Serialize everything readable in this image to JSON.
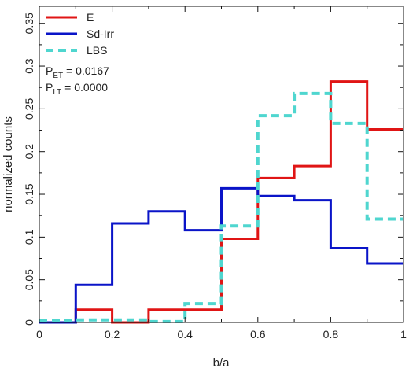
{
  "chart_data": {
    "type": "line",
    "title": "",
    "xlabel": "b/a",
    "ylabel": "normalized counts",
    "xlim": [
      0,
      1
    ],
    "ylim": [
      0,
      0.37
    ],
    "grid": false,
    "legend_position": "top-left",
    "x_ticks": [
      "0",
      "0.2",
      "0.4",
      "0.6",
      "0.8",
      "1"
    ],
    "x_tick_values": [
      0,
      0.2,
      0.4,
      0.6,
      0.8,
      1.0
    ],
    "x_minor_ticks": [
      0.1,
      0.3,
      0.5,
      0.7,
      0.9
    ],
    "y_ticks": [
      "0",
      "0.05",
      "0.1",
      "0.15",
      "0.2",
      "0.25",
      "0.3",
      "0.35"
    ],
    "y_tick_values": [
      0,
      0.05,
      0.1,
      0.15,
      0.2,
      0.25,
      0.3,
      0.35
    ],
    "bin_edges": [
      0,
      0.1,
      0.2,
      0.3,
      0.4,
      0.5,
      0.6,
      0.7,
      0.8,
      0.9,
      1.0
    ],
    "series": [
      {
        "name": "E",
        "color": "#e01515",
        "style": "solid",
        "values": [
          0.0,
          0.015,
          0.0,
          0.015,
          0.015,
          0.098,
          0.169,
          0.183,
          0.282,
          0.226
        ]
      },
      {
        "name": "Sd-Irr",
        "color": "#0a14c8",
        "style": "solid",
        "values": [
          0.0,
          0.044,
          0.116,
          0.13,
          0.108,
          0.157,
          0.148,
          0.143,
          0.087,
          0.069
        ]
      },
      {
        "name": "LBS",
        "color": "#4fd6cf",
        "style": "dashed",
        "values": [
          0.002,
          0.003,
          0.003,
          0.001,
          0.022,
          0.113,
          0.242,
          0.268,
          0.233,
          0.121
        ]
      }
    ],
    "annotations": [
      {
        "main": "P",
        "sub": "ET",
        "rest": " = 0.0167"
      },
      {
        "main": "P",
        "sub": "LT",
        "rest": " = 0.0000"
      }
    ]
  }
}
